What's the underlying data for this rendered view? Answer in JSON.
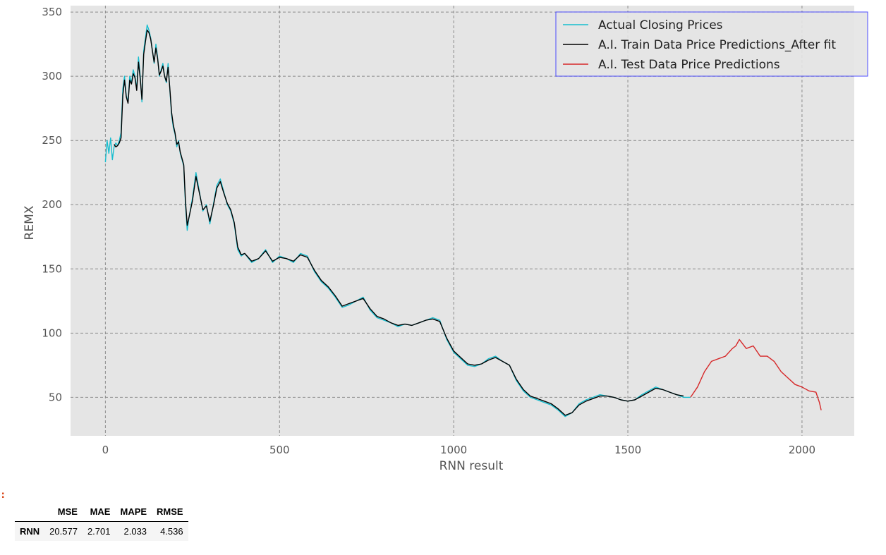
{
  "chart_data": {
    "type": "line",
    "title": "",
    "xlabel": "RNN result",
    "ylabel": "REMX",
    "xlim": [
      -100,
      2150
    ],
    "ylim": [
      20,
      355
    ],
    "x_ticks": [
      0,
      500,
      1000,
      1500,
      2000
    ],
    "y_ticks": [
      50,
      100,
      150,
      200,
      250,
      300,
      350
    ],
    "grid": true,
    "legend_position": "top-right",
    "series": [
      {
        "name": "Actual Closing Prices",
        "color": "#17becf",
        "x": [
          0,
          5,
          10,
          15,
          20,
          25,
          30,
          35,
          40,
          45,
          50,
          55,
          60,
          65,
          70,
          75,
          80,
          85,
          90,
          95,
          100,
          105,
          110,
          115,
          120,
          125,
          130,
          135,
          140,
          145,
          150,
          155,
          160,
          165,
          170,
          175,
          180,
          185,
          190,
          195,
          200,
          205,
          210,
          215,
          220,
          225,
          230,
          235,
          240,
          250,
          260,
          270,
          280,
          290,
          300,
          310,
          320,
          330,
          340,
          350,
          360,
          370,
          380,
          390,
          400,
          420,
          440,
          460,
          480,
          500,
          520,
          540,
          560,
          580,
          600,
          620,
          640,
          660,
          680,
          700,
          720,
          740,
          760,
          780,
          800,
          820,
          840,
          860,
          880,
          900,
          920,
          940,
          960,
          980,
          1000,
          1020,
          1040,
          1060,
          1080,
          1100,
          1120,
          1140,
          1160,
          1180,
          1200,
          1220,
          1240,
          1260,
          1280,
          1300,
          1320,
          1340,
          1360,
          1380,
          1400,
          1420,
          1440,
          1460,
          1480,
          1500,
          1520,
          1540,
          1560,
          1580,
          1600,
          1620,
          1640,
          1660,
          1680
        ],
        "values": [
          233,
          250,
          240,
          252,
          235,
          245,
          248,
          246,
          250,
          256,
          290,
          300,
          285,
          280,
          300,
          295,
          305,
          300,
          290,
          315,
          300,
          280,
          320,
          330,
          340,
          336,
          330,
          320,
          310,
          325,
          315,
          300,
          305,
          310,
          300,
          295,
          310,
          290,
          270,
          260,
          255,
          245,
          250,
          240,
          235,
          230,
          200,
          180,
          190,
          205,
          225,
          210,
          195,
          200,
          185,
          200,
          215,
          220,
          210,
          200,
          195,
          185,
          165,
          160,
          162,
          155,
          158,
          165,
          155,
          160,
          158,
          155,
          162,
          160,
          148,
          140,
          135,
          128,
          120,
          122,
          125,
          128,
          118,
          112,
          110,
          108,
          105,
          107,
          106,
          108,
          110,
          112,
          110,
          95,
          85,
          80,
          75,
          74,
          76,
          80,
          82,
          78,
          75,
          63,
          55,
          50,
          48,
          46,
          44,
          40,
          35,
          38,
          45,
          48,
          50,
          52,
          51,
          50,
          48,
          47,
          48,
          52,
          55,
          58,
          56,
          54,
          52,
          50,
          50
        ]
      },
      {
        "name": "A.I. Train Data Price Predictions_After fit",
        "color": "#000000",
        "x": [
          0,
          5,
          10,
          15,
          20,
          25,
          30,
          35,
          40,
          45,
          50,
          55,
          60,
          65,
          70,
          75,
          80,
          85,
          90,
          95,
          100,
          105,
          110,
          115,
          120,
          125,
          130,
          135,
          140,
          145,
          150,
          155,
          160,
          165,
          170,
          175,
          180,
          185,
          190,
          195,
          200,
          205,
          210,
          215,
          220,
          225,
          230,
          235,
          240,
          250,
          260,
          270,
          280,
          290,
          300,
          310,
          320,
          330,
          340,
          350,
          360,
          370,
          380,
          390,
          400,
          420,
          440,
          460,
          480,
          500,
          520,
          540,
          560,
          580,
          600,
          620,
          640,
          660,
          680,
          700,
          720,
          740,
          760,
          780,
          800,
          820,
          840,
          860,
          880,
          900,
          920,
          940,
          960,
          980,
          1000,
          1020,
          1040,
          1060,
          1080,
          1100,
          1120,
          1140,
          1160,
          1180,
          1200,
          1220,
          1240,
          1260,
          1280,
          1300,
          1320,
          1340,
          1360,
          1380,
          1400,
          1420,
          1440,
          1460,
          1480,
          1500,
          1520,
          1540,
          1560,
          1580,
          1600,
          1620,
          1640,
          1660
        ],
        "values": [
          null,
          null,
          null,
          null,
          null,
          247,
          245,
          246,
          248,
          252,
          285,
          297,
          284,
          279,
          297,
          294,
          302,
          299,
          289,
          311,
          298,
          282,
          317,
          327,
          336,
          334,
          329,
          320,
          311,
          322,
          314,
          301,
          304,
          308,
          300,
          296,
          307,
          291,
          272,
          262,
          256,
          247,
          249,
          241,
          236,
          231,
          203,
          184,
          190,
          203,
          222,
          209,
          196,
          199,
          187,
          199,
          213,
          218,
          209,
          201,
          196,
          186,
          167,
          161,
          162,
          156,
          158,
          164,
          156,
          159,
          158,
          156,
          161,
          159,
          149,
          141,
          136,
          129,
          121,
          123,
          125,
          127,
          119,
          113,
          111,
          108,
          106,
          107,
          106,
          108,
          110,
          111,
          109,
          96,
          86,
          81,
          76,
          75,
          76,
          79,
          81,
          78,
          75,
          64,
          56,
          51,
          49,
          47,
          45,
          41,
          36,
          38,
          44,
          47,
          49,
          51,
          51,
          50,
          48,
          47,
          48,
          51,
          54,
          57,
          56,
          54,
          52,
          51
        ]
      },
      {
        "name": "A.I. Test Data Price Predictions",
        "color": "#d62728",
        "x": [
          1680,
          1700,
          1720,
          1740,
          1760,
          1780,
          1800,
          1810,
          1820,
          1840,
          1860,
          1880,
          1900,
          1920,
          1940,
          1960,
          1980,
          2000,
          2020,
          2040,
          2050,
          2055
        ],
        "values": [
          50,
          58,
          70,
          78,
          80,
          82,
          88,
          90,
          95,
          88,
          90,
          82,
          82,
          78,
          70,
          65,
          60,
          58,
          55,
          54,
          46,
          40
        ]
      }
    ]
  },
  "prompt_marker": ":",
  "metrics_table": {
    "columns": [
      "",
      "MSE",
      "MAE",
      "MAPE",
      "RMSE"
    ],
    "rows": [
      [
        "RNN",
        "20.577",
        "2.701",
        "2.033",
        "4.536"
      ]
    ]
  }
}
